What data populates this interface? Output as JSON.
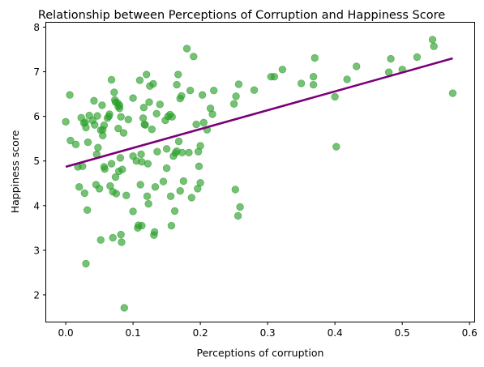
{
  "chart_data": {
    "type": "scatter",
    "title": "Relationship between Perceptions of Corruption and Happiness Score",
    "xlabel": "Perceptions of corruption",
    "ylabel": "Happiness score",
    "xlim": [
      -0.029,
      0.607
    ],
    "ylim": [
      1.4,
      8.1
    ],
    "xticks": [
      0.0,
      0.1,
      0.2,
      0.3,
      0.4,
      0.5,
      0.6
    ],
    "xtick_labels": [
      "0.0",
      "0.1",
      "0.2",
      "0.3",
      "0.4",
      "0.5",
      "0.6"
    ],
    "yticks": [
      2,
      3,
      4,
      5,
      6,
      7,
      8
    ],
    "ytick_labels": [
      "2",
      "3",
      "4",
      "5",
      "6",
      "7",
      "8"
    ],
    "grid": false,
    "point_color": "#2ca02c",
    "point_alpha": 0.65,
    "points": [
      [
        0.0,
        5.88
      ],
      [
        0.006,
        6.48
      ],
      [
        0.007,
        5.46
      ],
      [
        0.015,
        5.37
      ],
      [
        0.018,
        4.87
      ],
      [
        0.02,
        4.42
      ],
      [
        0.023,
        5.97
      ],
      [
        0.025,
        4.88
      ],
      [
        0.027,
        5.85
      ],
      [
        0.028,
        4.28
      ],
      [
        0.029,
        5.87
      ],
      [
        0.03,
        5.75
      ],
      [
        0.03,
        2.7
      ],
      [
        0.032,
        3.9
      ],
      [
        0.033,
        5.42
      ],
      [
        0.035,
        6.02
      ],
      [
        0.04,
        5.91
      ],
      [
        0.042,
        6.35
      ],
      [
        0.043,
        5.81
      ],
      [
        0.045,
        4.47
      ],
      [
        0.046,
        5.15
      ],
      [
        0.047,
        6.01
      ],
      [
        0.048,
        5.3
      ],
      [
        0.052,
        5.69
      ],
      [
        0.054,
        6.25
      ],
      [
        0.05,
        4.38
      ],
      [
        0.052,
        3.23
      ],
      [
        0.055,
        5.7
      ],
      [
        0.055,
        5.57
      ],
      [
        0.057,
        5.8
      ],
      [
        0.057,
        4.87
      ],
      [
        0.058,
        4.82
      ],
      [
        0.062,
        5.96
      ],
      [
        0.064,
        6.0
      ],
      [
        0.065,
        6.05
      ],
      [
        0.066,
        4.44
      ],
      [
        0.068,
        6.82
      ],
      [
        0.068,
        4.94
      ],
      [
        0.07,
        4.31
      ],
      [
        0.07,
        3.28
      ],
      [
        0.072,
        6.54
      ],
      [
        0.073,
        6.37
      ],
      [
        0.074,
        6.32
      ],
      [
        0.074,
        4.64
      ],
      [
        0.075,
        4.27
      ],
      [
        0.077,
        6.3
      ],
      [
        0.078,
        6.22
      ],
      [
        0.078,
        5.73
      ],
      [
        0.079,
        4.77
      ],
      [
        0.08,
        6.25
      ],
      [
        0.08,
        6.18
      ],
      [
        0.081,
        5.07
      ],
      [
        0.082,
        5.99
      ],
      [
        0.082,
        3.35
      ],
      [
        0.083,
        3.18
      ],
      [
        0.084,
        4.81
      ],
      [
        0.086,
        5.63
      ],
      [
        0.087,
        1.71
      ],
      [
        0.09,
        4.23
      ],
      [
        0.093,
        5.93
      ],
      [
        0.1,
        6.41
      ],
      [
        0.1,
        5.11
      ],
      [
        0.1,
        3.87
      ],
      [
        0.105,
        5.0
      ],
      [
        0.107,
        3.5
      ],
      [
        0.108,
        3.56
      ],
      [
        0.11,
        6.81
      ],
      [
        0.111,
        4.47
      ],
      [
        0.112,
        5.15
      ],
      [
        0.113,
        3.55
      ],
      [
        0.113,
        4.98
      ],
      [
        0.115,
        5.96
      ],
      [
        0.116,
        6.2
      ],
      [
        0.117,
        5.82
      ],
      [
        0.118,
        5.81
      ],
      [
        0.12,
        6.94
      ],
      [
        0.121,
        4.21
      ],
      [
        0.122,
        4.94
      ],
      [
        0.123,
        4.04
      ],
      [
        0.124,
        6.32
      ],
      [
        0.125,
        6.68
      ],
      [
        0.128,
        5.71
      ],
      [
        0.13,
        6.73
      ],
      [
        0.131,
        3.34
      ],
      [
        0.132,
        3.41
      ],
      [
        0.133,
        4.42
      ],
      [
        0.135,
        6.06
      ],
      [
        0.136,
        5.21
      ],
      [
        0.14,
        6.27
      ],
      [
        0.145,
        4.54
      ],
      [
        0.148,
        5.91
      ],
      [
        0.15,
        4.84
      ],
      [
        0.15,
        5.27
      ],
      [
        0.152,
        6.0
      ],
      [
        0.155,
        6.04
      ],
      [
        0.156,
        4.21
      ],
      [
        0.157,
        3.55
      ],
      [
        0.158,
        5.99
      ],
      [
        0.16,
        5.11
      ],
      [
        0.162,
        3.88
      ],
      [
        0.163,
        5.18
      ],
      [
        0.165,
        6.71
      ],
      [
        0.165,
        5.22
      ],
      [
        0.167,
        6.94
      ],
      [
        0.168,
        5.44
      ],
      [
        0.17,
        6.4
      ],
      [
        0.17,
        4.33
      ],
      [
        0.172,
        6.46
      ],
      [
        0.173,
        5.19
      ],
      [
        0.175,
        4.55
      ],
      [
        0.18,
        7.52
      ],
      [
        0.183,
        5.19
      ],
      [
        0.185,
        6.58
      ],
      [
        0.187,
        4.18
      ],
      [
        0.19,
        7.34
      ],
      [
        0.194,
        5.82
      ],
      [
        0.196,
        4.38
      ],
      [
        0.197,
        5.21
      ],
      [
        0.198,
        4.88
      ],
      [
        0.2,
        5.34
      ],
      [
        0.2,
        4.51
      ],
      [
        0.203,
        6.48
      ],
      [
        0.205,
        5.86
      ],
      [
        0.21,
        5.7
      ],
      [
        0.215,
        6.18
      ],
      [
        0.218,
        6.05
      ],
      [
        0.22,
        6.58
      ],
      [
        0.25,
        6.28
      ],
      [
        0.252,
        4.36
      ],
      [
        0.253,
        6.45
      ],
      [
        0.256,
        3.77
      ],
      [
        0.257,
        6.72
      ],
      [
        0.259,
        3.97
      ],
      [
        0.28,
        6.59
      ],
      [
        0.305,
        6.89
      ],
      [
        0.31,
        6.89
      ],
      [
        0.322,
        7.05
      ],
      [
        0.35,
        6.74
      ],
      [
        0.368,
        6.71
      ],
      [
        0.368,
        6.89
      ],
      [
        0.37,
        7.31
      ],
      [
        0.4,
        6.44
      ],
      [
        0.402,
        5.32
      ],
      [
        0.418,
        6.83
      ],
      [
        0.432,
        7.12
      ],
      [
        0.48,
        6.99
      ],
      [
        0.483,
        7.29
      ],
      [
        0.5,
        7.05
      ],
      [
        0.522,
        7.33
      ],
      [
        0.545,
        7.72
      ],
      [
        0.547,
        7.57
      ],
      [
        0.575,
        6.52
      ]
    ],
    "trendline": {
      "color": "#7b0078",
      "x": [
        0.0,
        0.575
      ],
      "y": [
        4.87,
        7.3
      ]
    }
  }
}
